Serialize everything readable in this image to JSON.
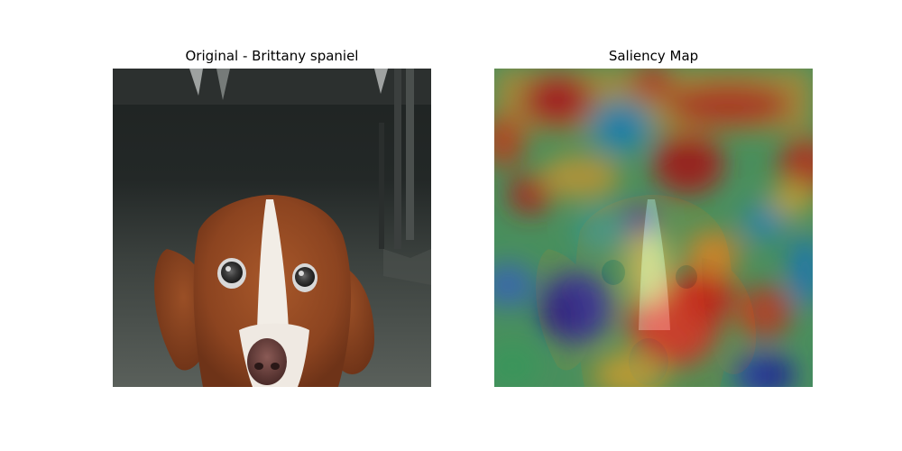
{
  "panels": [
    {
      "title": "Original - Brittany spaniel"
    },
    {
      "title": "Saliency Map"
    }
  ]
}
